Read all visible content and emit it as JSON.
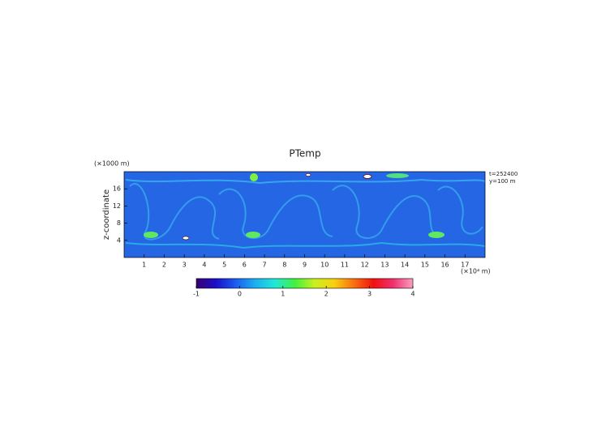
{
  "chart_data": {
    "type": "heatmap",
    "title": "PTemp",
    "y_unit_label": "(×1000 m)",
    "y_label": "z-coordinate",
    "x_unit_label": "(×10⁴ m)",
    "annotations": [
      "t=252400",
      "y=100 m"
    ],
    "xlim": [
      0,
      18
    ],
    "xticks": [
      1,
      2,
      3,
      4,
      5,
      6,
      7,
      8,
      9,
      10,
      11,
      12,
      13,
      14,
      15,
      16,
      17
    ],
    "ylim": [
      0,
      20
    ],
    "yticks": [
      4,
      8,
      12,
      16
    ],
    "colorbar": {
      "lim": [
        -1,
        4
      ],
      "ticks": [
        -1,
        0,
        1,
        2,
        3,
        4
      ],
      "colors": [
        "#3a0070",
        "#1a10c8",
        "#1c5cf0",
        "#1ab0f0",
        "#20e8d8",
        "#40f040",
        "#c8f020",
        "#f8d010",
        "#f87010",
        "#f01010",
        "#f03070",
        "#f8a0c0"
      ]
    }
  }
}
